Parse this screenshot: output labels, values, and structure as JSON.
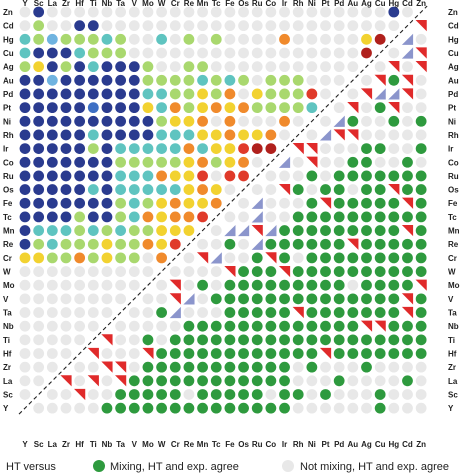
{
  "chart_data": {
    "type": "heatmap",
    "elements": [
      "Y",
      "Sc",
      "La",
      "Zr",
      "Hf",
      "Ti",
      "Nb",
      "Ta",
      "V",
      "Mo",
      "W",
      "Cr",
      "Re",
      "Mn",
      "Tc",
      "Fe",
      "Os",
      "Ru",
      "Co",
      "Ir",
      "Rh",
      "Ni",
      "Pt",
      "Pd",
      "Au",
      "Ag",
      "Cu",
      "Hg",
      "Cd",
      "Zn"
    ],
    "row_order_top_to_bottom": [
      "Zn",
      "Cd",
      "Hg",
      "Cu",
      "Ag",
      "Au",
      "Pd",
      "Pt",
      "Ni",
      "Rh",
      "Ir",
      "Co",
      "Ru",
      "Os",
      "Fe",
      "Tc",
      "Mn",
      "Re",
      "Cr",
      "W",
      "Mo",
      "V",
      "Ta",
      "Nb",
      "Ti",
      "Hf",
      "Zr",
      "La",
      "Sc",
      "Y"
    ],
    "x_tick_labels_top": [
      "Y",
      "Sc",
      "La",
      "Zr",
      "Hf",
      "Ti",
      "Nb",
      "Ta",
      "V",
      "Mo",
      "W",
      "Cr",
      "Re",
      "Mn",
      "Tc",
      "Fe",
      "Os",
      "Ru",
      "Co",
      "Ir",
      "Rh",
      "Ni",
      "Pt",
      "Pd",
      "Au",
      "Ag",
      "Cu",
      "Hg",
      "Cd",
      "Zn"
    ],
    "x_tick_labels_bottom": [
      "Y",
      "Sc",
      "La",
      "Zr",
      "Hf",
      "Ti",
      "Nb",
      "Ta",
      "V",
      "Mo",
      "W",
      "Cr",
      "Re",
      "Mn",
      "Tc",
      "Fe",
      "Os",
      "Ru",
      "Co",
      "Ir",
      "Rh",
      "Ni",
      "Pt",
      "Pd",
      "Au",
      "Ag",
      "Cu",
      "Hg",
      "Cd",
      "Zn"
    ],
    "y_tick_labels_left": [
      "Zn",
      "Cd",
      "Hg",
      "Cu",
      "Ag",
      "Au",
      "Pd",
      "Pt",
      "Ni",
      "Rh",
      "Ir",
      "Co",
      "Ru",
      "Os",
      "Fe",
      "Tc",
      "Mn",
      "Re",
      "Cr",
      "W",
      "Mo",
      "V",
      "Ta",
      "Nb",
      "Ti",
      "Hf",
      "Zr",
      "La",
      "Sc",
      "Y"
    ],
    "y_tick_labels_right": [
      "Zn",
      "Cd",
      "Hg",
      "Cu",
      "Ag",
      "Au",
      "Pd",
      "Pt",
      "Ni",
      "Rh",
      "Ir",
      "Co",
      "Ru",
      "Os",
      "Fe",
      "Tc",
      "Mn",
      "Re",
      "Cr",
      "W",
      "Mo",
      "V",
      "Ta",
      "Nb",
      "Ti",
      "Hf",
      "Zr",
      "La",
      "Sc",
      "Y"
    ],
    "upper_left_triangle_grid_legend": {
      "g": "light grey circle",
      "B": "dark blue circle",
      "b": "blue circle",
      "c": "light blue circle",
      "t": "teal circle",
      "G": "light green circle",
      "y": "yellow circle",
      "o": "orange circle",
      "r": "red circle",
      "d": "dark red circle"
    },
    "upper_left_triangle_grid": [
      "gBgggggggggggggggggggggggggBg",
      "gGggBBggggggggggggggggggggg",
      "tGcGGGtGggtgGgGggggogggggyd",
      "tBBBtGGGgggggggggggggggggdr",
      "GyBGBtBBBGggGGgggggggggggry",
      "BBcBBBBBBGGGGtGtGgGGGggggo",
      "BBBBBBBBBttGGyGogyGGGrgyg",
      "BBBBBbBBBytoGyoyoGGGGtgo",
      "BBBBBBBBBBGyyogogggoggr",
      "BBBBBtBBBBtttyyoyyogyr",
      "BBBBBGBtttttotyyrddyy",
      "BBBBBBBGGGGGyoGyoggr",
      "BBBBBBBtttoyyrgrrdo",
      "BBBBBtBtttttyoygyg",
      "BBBBBBBGtGyoyyoyy",
      "BBBBGBBGtoyooryr",
      "BtttGtGtGGyyygr",
      "BGtGGGyGGoyryo",
      "yyGGoGyGGgogg",
      "ggggggggggggg",
      "gggggggggg",
      "gggggggggg",
      "gggggggg",
      "gggggg",
      "ggggg",
      "gggg",
      "ggg",
      "gg",
      "g"
    ],
    "legend": {
      "item1": "HT versus",
      "item2": "Mixing, HT and exp. agree",
      "item3": "Not mixing, HT and exp. agree"
    },
    "colors": {
      "grey": "#e8e8e8",
      "dark_blue": "#2a3b8f",
      "blue": "#3e6fc4",
      "light_blue": "#6fb3e0",
      "teal": "#5fc4c0",
      "light_green": "#a9d86e",
      "yellow": "#f2d230",
      "orange": "#f08a2c",
      "red": "#e03a2a",
      "dark_red": "#b0201c",
      "green": "#2e9a3e",
      "triangle_red": "#e02a2a",
      "triangle_blue": "#8b95cc"
    }
  }
}
